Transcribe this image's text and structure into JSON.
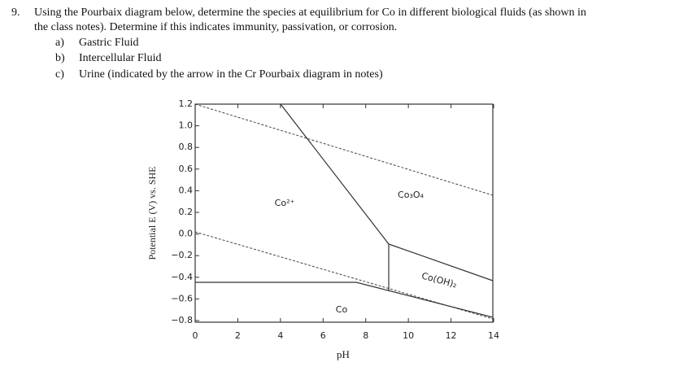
{
  "question": {
    "number": "9.",
    "lines": [
      "Using the Pourbaix diagram below, determine the species at equilibrium for Co in different biological fluids (as shown in",
      "the class notes). Determine if this indicates immunity, passivation, or corrosion."
    ],
    "items": [
      {
        "label": "a)",
        "text": "Gastric Fluid"
      },
      {
        "label": "b)",
        "text": "Intercellular Fluid"
      },
      {
        "label": "c)",
        "text": "Urine (indicated by the arrow in the Cr Pourbaix diagram in notes)"
      }
    ]
  },
  "figure": {
    "y_axis_title": "Potential E (V) vs. SHE",
    "x_axis_title": "pH",
    "yticks": [
      "1.2",
      "1.0",
      "0.8",
      "0.6",
      "0.4",
      "0.2",
      "0.0",
      "−0.2",
      "−0.4",
      "−0.6",
      "−0.8"
    ],
    "xticks": [
      "0",
      "2",
      "4",
      "6",
      "8",
      "10",
      "12",
      "14"
    ],
    "regions": {
      "co_ion": "Co²⁺",
      "co3o4": "Co₃O₄",
      "cooh2": "Co(OH)₂",
      "co": "Co"
    }
  }
}
